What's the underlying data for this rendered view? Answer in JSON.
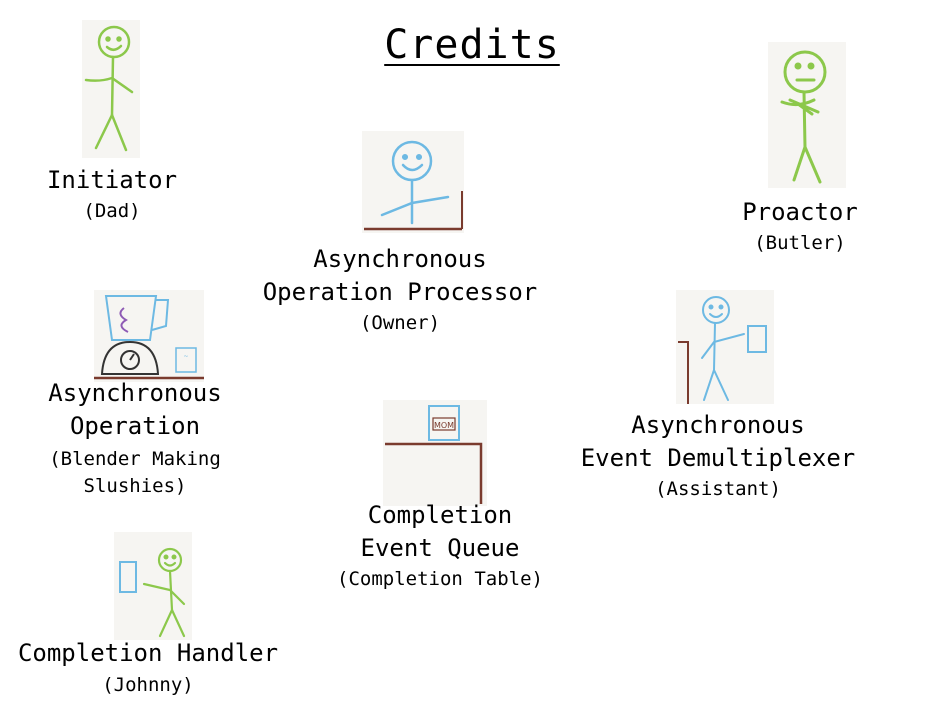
{
  "title": "Credits",
  "roles": {
    "initiator": {
      "name": "Initiator",
      "person": "(Dad)"
    },
    "proactor": {
      "name": "Proactor",
      "person": "(Butler)"
    },
    "processor": {
      "name_lines": [
        "Asynchronous",
        "Operation Processor"
      ],
      "person": "(Owner)"
    },
    "operation": {
      "name_lines": [
        "Asynchronous",
        "Operation"
      ],
      "person_lines": [
        "(Blender Making",
        "Slushies)"
      ]
    },
    "demux": {
      "name_lines": [
        "Asynchronous",
        "Event Demultiplexer"
      ],
      "person": "(Assistant)"
    },
    "queue": {
      "name_lines": [
        "Completion",
        "Event Queue"
      ],
      "person": "(Completion Table)"
    },
    "handler": {
      "name": "Completion Handler",
      "person": "(Johnny)"
    }
  },
  "drawing_text": {
    "queue_card": "MOM"
  },
  "colors": {
    "green": "#8cc84b",
    "blue": "#6db9e3",
    "brown": "#7a3b2e",
    "purple": "#8e5bb5"
  }
}
